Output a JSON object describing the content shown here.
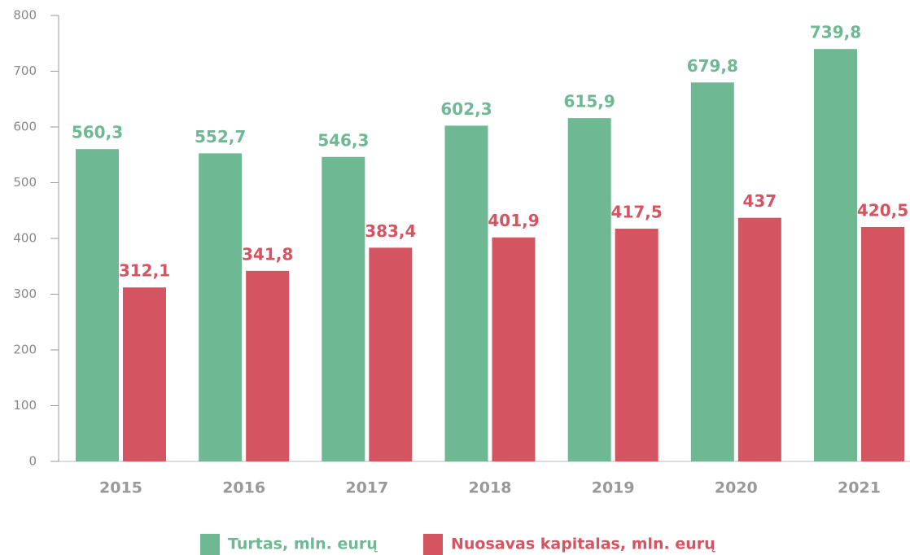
{
  "chart_data": {
    "type": "bar",
    "categories": [
      "2015",
      "2016",
      "2017",
      "2018",
      "2019",
      "2020",
      "2021"
    ],
    "series": [
      {
        "name": "Turtas, mln. eurų",
        "color": "#6fb894",
        "values": [
          560.3,
          552.7,
          546.3,
          602.3,
          615.9,
          679.8,
          739.8
        ],
        "value_labels": [
          "560,3",
          "552,7",
          "546,3",
          "602,3",
          "615,9",
          "679,8",
          "739,8"
        ]
      },
      {
        "name": "Nuosavas kapitalas, mln. eurų",
        "color": "#d45561",
        "values": [
          312.1,
          341.8,
          383.4,
          401.9,
          417.5,
          437,
          420.5
        ],
        "value_labels": [
          "312,1",
          "341,8",
          "383,4",
          "401,9",
          "417,5",
          "437",
          "420,5"
        ]
      }
    ],
    "ylim": [
      0,
      800
    ],
    "yticks": [
      0,
      100,
      200,
      300,
      400,
      500,
      600,
      700,
      800
    ],
    "legend": "bottom"
  }
}
